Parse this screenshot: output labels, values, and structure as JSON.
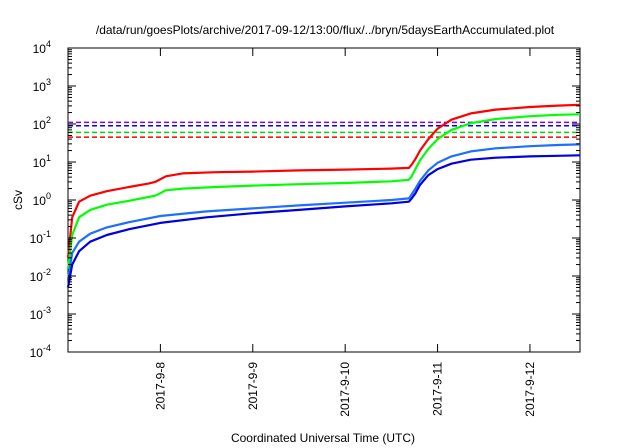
{
  "chart_data": {
    "type": "line",
    "title": "/data/run/goesPlots/archive/2017-09-12/13:00/flux/../bryn/5daysEarthAccumulated.plot",
    "xlabel": "Coordinated Universal Time (UTC)",
    "ylabel": "cSv",
    "yscale": "log",
    "ylim": [
      0.0001,
      10000
    ],
    "xlim": [
      "2017-09-07T00:00",
      "2017-09-12T13:00"
    ],
    "x_tick_labels": [
      "2017-9-8",
      "2017-9-9",
      "2017-9-10",
      "2017-9-11",
      "2017-9-12"
    ],
    "x_ticks": [
      "2017-09-08T00:00",
      "2017-09-09T00:00",
      "2017-09-10T00:00",
      "2017-09-11T00:00",
      "2017-09-12T00:00"
    ],
    "y_tick_labels": [
      {
        "base": "10",
        "exp": "-4"
      },
      {
        "base": "10",
        "exp": "-3"
      },
      {
        "base": "10",
        "exp": "-2"
      },
      {
        "base": "10",
        "exp": "-1"
      },
      {
        "base": "10",
        "exp": "0"
      },
      {
        "base": "10",
        "exp": "1"
      },
      {
        "base": "10",
        "exp": "2"
      },
      {
        "base": "10",
        "exp": "3"
      },
      {
        "base": "10",
        "exp": "4"
      }
    ],
    "grid": false,
    "legend": "none",
    "reference_lines": [
      {
        "y": 110,
        "color": "#9400d3",
        "style": "dashed"
      },
      {
        "y": 90,
        "color": "#0000ff",
        "style": "dashed"
      },
      {
        "y": 60,
        "color": "#00dd00",
        "style": "dashed"
      },
      {
        "y": 45,
        "color": "#ff0000",
        "style": "dashed"
      }
    ],
    "series": [
      {
        "color": "#ff0000",
        "points": [
          [
            "2017-09-07T00:00",
            0.03
          ],
          [
            "2017-09-07T01:05",
            0.35
          ],
          [
            "2017-09-07T02:53",
            0.9
          ],
          [
            "2017-09-07T05:46",
            1.3
          ],
          [
            "2017-09-07T10:05",
            1.7
          ],
          [
            "2017-09-07T15:50",
            2.2
          ],
          [
            "2017-09-07T20:53",
            2.7
          ],
          [
            "2017-09-07T22:41",
            3.0
          ],
          [
            "2017-09-08T01:26",
            4.2
          ],
          [
            "2017-09-08T05:46",
            5.0
          ],
          [
            "2017-09-08T14:24",
            5.4
          ],
          [
            "2017-09-09T00:00",
            5.6
          ],
          [
            "2017-09-09T12:00",
            6.0
          ],
          [
            "2017-09-10T00:00",
            6.3
          ],
          [
            "2017-09-10T12:00",
            6.7
          ],
          [
            "2017-09-10T16:34",
            7.0
          ],
          [
            "2017-09-10T17:17",
            8.5
          ],
          [
            "2017-09-10T18:14",
            12
          ],
          [
            "2017-09-10T19:26",
            20
          ],
          [
            "2017-09-10T21:36",
            40
          ],
          [
            "2017-09-11T00:00",
            75
          ],
          [
            "2017-09-11T03:36",
            130
          ],
          [
            "2017-09-11T08:38",
            190
          ],
          [
            "2017-09-11T15:07",
            240
          ],
          [
            "2017-09-12T00:00",
            280
          ],
          [
            "2017-09-12T07:12",
            305
          ],
          [
            "2017-09-12T13:00",
            320
          ]
        ]
      },
      {
        "color": "#00ff00",
        "points": [
          [
            "2017-09-07T00:00",
            0.015
          ],
          [
            "2017-09-07T01:05",
            0.12
          ],
          [
            "2017-09-07T02:53",
            0.35
          ],
          [
            "2017-09-07T05:46",
            0.55
          ],
          [
            "2017-09-07T10:05",
            0.75
          ],
          [
            "2017-09-07T15:50",
            0.95
          ],
          [
            "2017-09-07T20:53",
            1.2
          ],
          [
            "2017-09-07T22:41",
            1.3
          ],
          [
            "2017-09-08T01:26",
            1.8
          ],
          [
            "2017-09-08T05:46",
            2.0
          ],
          [
            "2017-09-08T14:24",
            2.2
          ],
          [
            "2017-09-09T00:00",
            2.4
          ],
          [
            "2017-09-09T12:00",
            2.6
          ],
          [
            "2017-09-10T00:00",
            2.8
          ],
          [
            "2017-09-10T12:00",
            3.1
          ],
          [
            "2017-09-10T16:34",
            3.4
          ],
          [
            "2017-09-10T17:17",
            4.2
          ],
          [
            "2017-09-10T18:14",
            6.5
          ],
          [
            "2017-09-10T19:26",
            11
          ],
          [
            "2017-09-10T21:36",
            22
          ],
          [
            "2017-09-11T00:00",
            40
          ],
          [
            "2017-09-11T03:36",
            70
          ],
          [
            "2017-09-11T08:38",
            105
          ],
          [
            "2017-09-11T15:07",
            135
          ],
          [
            "2017-09-12T00:00",
            160
          ],
          [
            "2017-09-12T07:12",
            175
          ],
          [
            "2017-09-12T13:00",
            180
          ]
        ]
      },
      {
        "color": "#1e6fff",
        "points": [
          [
            "2017-09-07T00:00",
            0.008
          ],
          [
            "2017-09-07T01:05",
            0.04
          ],
          [
            "2017-09-07T02:53",
            0.08
          ],
          [
            "2017-09-07T05:46",
            0.13
          ],
          [
            "2017-09-07T10:05",
            0.19
          ],
          [
            "2017-09-07T15:50",
            0.26
          ],
          [
            "2017-09-08T00:00",
            0.38
          ],
          [
            "2017-09-08T12:00",
            0.5
          ],
          [
            "2017-09-09T00:00",
            0.6
          ],
          [
            "2017-09-09T12:00",
            0.72
          ],
          [
            "2017-09-10T00:00",
            0.85
          ],
          [
            "2017-09-10T12:00",
            1.0
          ],
          [
            "2017-09-10T16:34",
            1.1
          ],
          [
            "2017-09-10T17:17",
            1.4
          ],
          [
            "2017-09-10T18:14",
            2.0
          ],
          [
            "2017-09-10T19:26",
            3.2
          ],
          [
            "2017-09-10T21:36",
            6.0
          ],
          [
            "2017-09-11T00:00",
            9.5
          ],
          [
            "2017-09-11T03:36",
            14
          ],
          [
            "2017-09-11T08:38",
            19
          ],
          [
            "2017-09-11T15:07",
            23
          ],
          [
            "2017-09-12T00:00",
            26
          ],
          [
            "2017-09-12T07:12",
            28
          ],
          [
            "2017-09-12T13:00",
            29
          ]
        ]
      },
      {
        "color": "#0000e0",
        "points": [
          [
            "2017-09-07T00:00",
            0.005
          ],
          [
            "2017-09-07T01:05",
            0.02
          ],
          [
            "2017-09-07T02:53",
            0.045
          ],
          [
            "2017-09-07T05:46",
            0.08
          ],
          [
            "2017-09-07T10:05",
            0.12
          ],
          [
            "2017-09-07T15:50",
            0.17
          ],
          [
            "2017-09-08T00:00",
            0.25
          ],
          [
            "2017-09-08T12:00",
            0.35
          ],
          [
            "2017-09-09T00:00",
            0.45
          ],
          [
            "2017-09-09T12:00",
            0.55
          ],
          [
            "2017-09-10T00:00",
            0.68
          ],
          [
            "2017-09-10T12:00",
            0.82
          ],
          [
            "2017-09-10T16:34",
            0.9
          ],
          [
            "2017-09-10T17:17",
            1.1
          ],
          [
            "2017-09-10T18:14",
            1.5
          ],
          [
            "2017-09-10T19:26",
            2.5
          ],
          [
            "2017-09-10T21:36",
            4.5
          ],
          [
            "2017-09-11T00:00",
            6.5
          ],
          [
            "2017-09-11T03:36",
            9
          ],
          [
            "2017-09-11T08:38",
            11.5
          ],
          [
            "2017-09-11T15:07",
            13
          ],
          [
            "2017-09-12T00:00",
            14
          ],
          [
            "2017-09-12T07:12",
            14.6
          ],
          [
            "2017-09-12T13:00",
            15
          ]
        ]
      }
    ]
  }
}
